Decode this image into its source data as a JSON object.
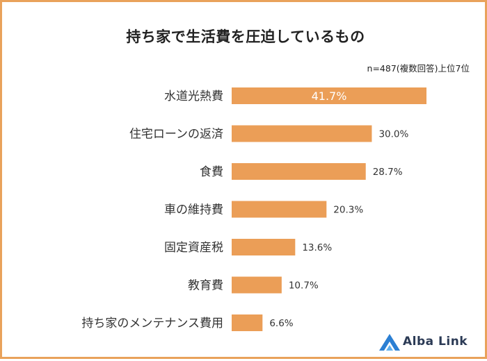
{
  "title": "持ち家で生活費を圧迫しているもの",
  "note": "n=487(複数回答)上位7位",
  "brand": "Alba Link",
  "colors": {
    "bar": "#eb9e57",
    "border": "#e9a25b",
    "logo_mark": "#2b7fd3"
  },
  "chart_data": {
    "type": "bar",
    "orientation": "horizontal",
    "title": "持ち家で生活費を圧迫しているもの",
    "categories": [
      "水道光熱費",
      "住宅ローンの返済",
      "食費",
      "車の維持費",
      "固定資産税",
      "教育費",
      "持ち家のメンテナンス費用"
    ],
    "values": [
      41.7,
      30.0,
      28.7,
      20.3,
      13.6,
      10.7,
      6.6
    ],
    "value_labels": [
      "41.7%",
      "30.0%",
      "28.7%",
      "20.3%",
      "13.6%",
      "10.7%",
      "6.6%"
    ],
    "unit": "%",
    "xlim": [
      0,
      45
    ],
    "grid": false
  }
}
